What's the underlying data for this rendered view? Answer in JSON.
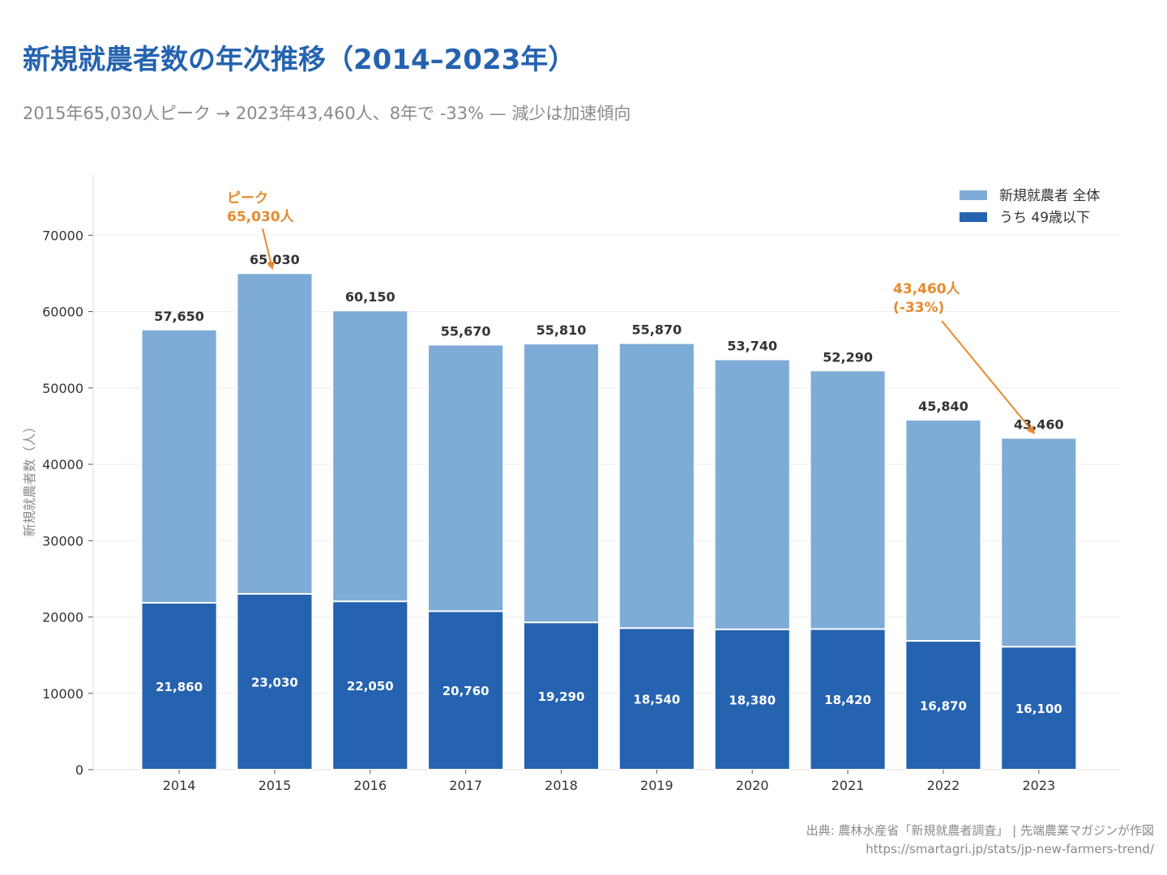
{
  "title": "新規就農者数の年次推移（2014–2023年）",
  "subtitle": "2015年65,030人ピーク → 2023年43,460人、8年で -33% — 減少は加速傾向",
  "source_line1": "出典: 農林水産省「新規就農者調査」 | 先端農業マガジンが作図",
  "source_line2": "https://smartagri.jp/stats/jp-new-farmers-trend/",
  "colors": {
    "total": "#7facd6",
    "under49": "#2563b0",
    "annotation": "#e68a2e",
    "title": "#2563b0"
  },
  "chart_data": {
    "type": "bar",
    "stacked": "overlay",
    "categories": [
      "2014",
      "2015",
      "2016",
      "2017",
      "2018",
      "2019",
      "2020",
      "2021",
      "2022",
      "2023"
    ],
    "series": [
      {
        "name": "新規就農者 全体",
        "values": [
          57650,
          65030,
          60150,
          55670,
          55810,
          55870,
          53740,
          52290,
          45840,
          43460
        ],
        "labels": [
          "57,650",
          "65,030",
          "60,150",
          "55,670",
          "55,810",
          "55,870",
          "53,740",
          "52,290",
          "45,840",
          "43,460"
        ]
      },
      {
        "name": "うち 49歳以下",
        "values": [
          21860,
          23030,
          22050,
          20760,
          19290,
          18540,
          18380,
          18420,
          16870,
          16100
        ],
        "labels": [
          "21,860",
          "23,030",
          "22,050",
          "20,760",
          "19,290",
          "18,540",
          "18,380",
          "18,420",
          "16,870",
          "16,100"
        ]
      }
    ],
    "ylabel": "新規就農者数（人）",
    "ylim": [
      0,
      78000
    ],
    "yticks": [
      0,
      10000,
      20000,
      30000,
      40000,
      50000,
      60000,
      70000
    ],
    "ytick_labels": [
      "0",
      "10000",
      "20000",
      "30000",
      "40000",
      "50000",
      "60000",
      "70000"
    ],
    "grid": true,
    "legend_position": "top-right",
    "annotations": [
      {
        "lines": [
          "ピーク",
          "65,030人"
        ],
        "target_category": "2015",
        "target_value": 65030
      },
      {
        "lines": [
          "43,460人",
          "(-33%)"
        ],
        "target_category": "2023",
        "target_value": 43460
      }
    ]
  }
}
